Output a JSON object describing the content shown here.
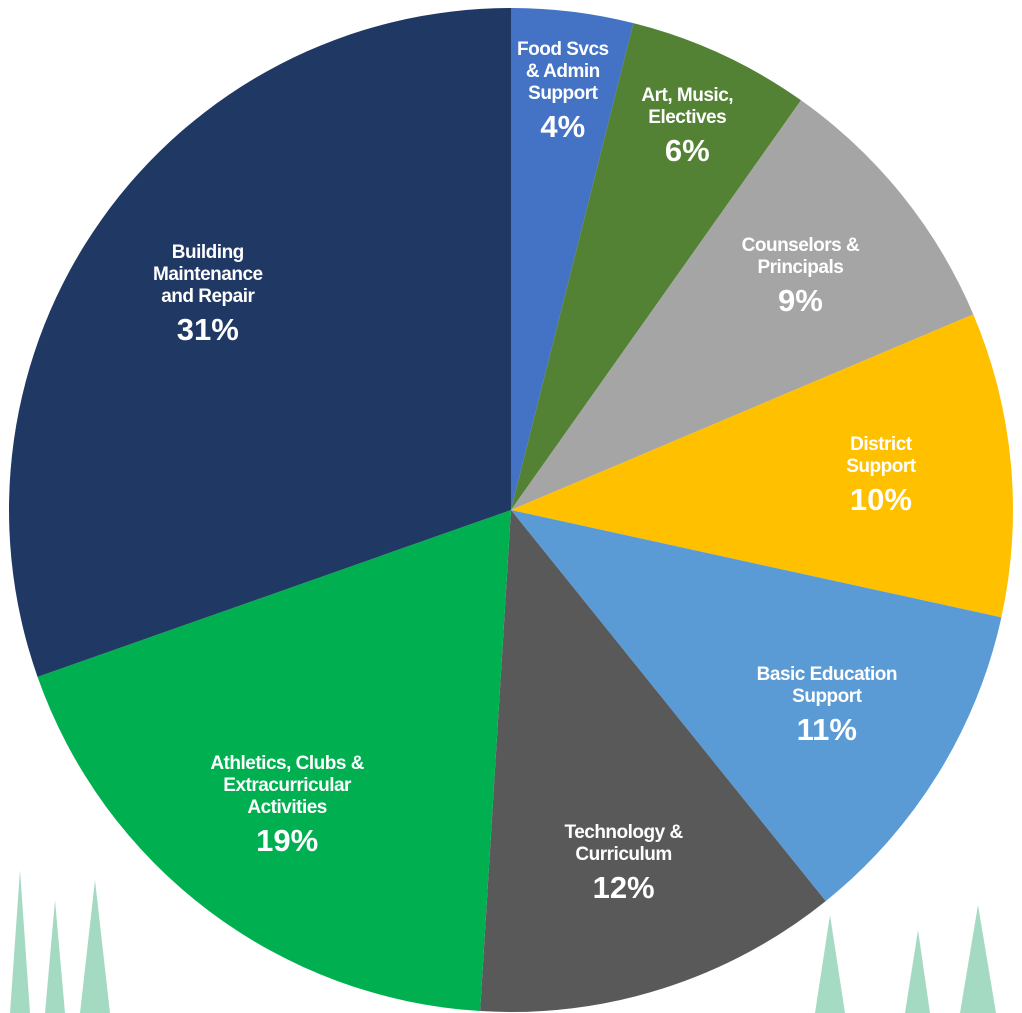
{
  "chart_data": {
    "type": "pie",
    "categories": [
      "Food Svcs\n& Admin\nSupport",
      "Art, Music,\nElectives",
      "Counselors &\nPrincipals",
      "District\nSupport",
      "Basic Education\nSupport",
      "Technology &\nCurriculum",
      "Athletics, Clubs &\nExtracurricular\nActivities",
      "Building\nMaintenance\nand Repair"
    ],
    "values": [
      4,
      6,
      9,
      10,
      11,
      12,
      19,
      31
    ],
    "value_labels": [
      "4%",
      "6%",
      "9%",
      "10%",
      "11%",
      "12%",
      "19%",
      "31%"
    ],
    "colors": [
      "#4472c4",
      "#548235",
      "#a5a5a5",
      "#ffc000",
      "#5b9bd5",
      "#595959",
      "#00b050",
      "#203864"
    ]
  }
}
